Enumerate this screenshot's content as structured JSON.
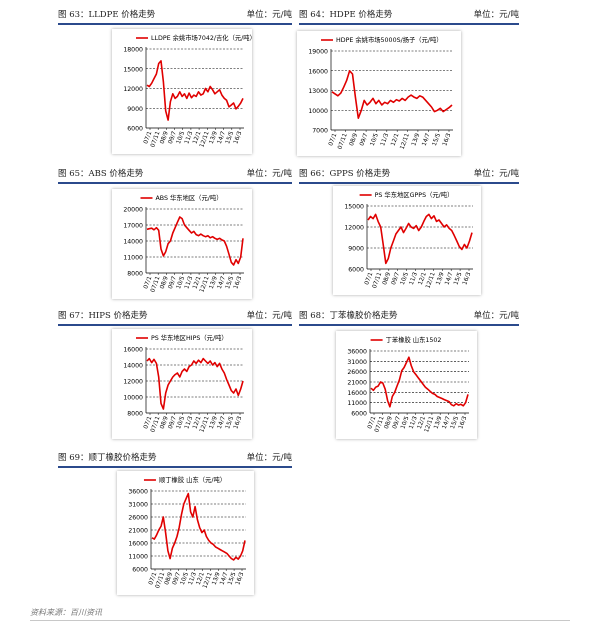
{
  "panels": [
    {
      "id": "p63",
      "title": "图 63：LLDPE 价格走势",
      "unit": "单位：元/吨",
      "chart_data": {
        "type": "line",
        "legend": "LLDPE 余姚市场7042/吉化（元/吨）",
        "ylim": [
          6000,
          18000
        ],
        "yticks": [
          6000,
          9000,
          12000,
          15000,
          18000
        ],
        "xticks": [
          "07/1",
          "07/11",
          "08/9",
          "09/7",
          "10/5",
          "11/3",
          "12/1",
          "12/11",
          "13/9",
          "14/7",
          "15/5",
          "16/3"
        ],
        "color": "#e00000",
        "series": [
          12500,
          12300,
          12800,
          13500,
          14200,
          15800,
          16200,
          13000,
          8600,
          7200,
          10000,
          11200,
          10500,
          10800,
          11500,
          10800,
          11200,
          10500,
          11300,
          10600,
          11000,
          10800,
          11500,
          11000,
          11200,
          12000,
          11500,
          12300,
          11800,
          11200,
          11500,
          11800,
          11000,
          10500,
          10200,
          9200,
          9500,
          9800,
          8900,
          9300,
          9800,
          10500
        ]
      }
    },
    {
      "id": "p64",
      "title": "图 64：HDPE 价格走势",
      "unit": "单位：元/吨",
      "chart_data": {
        "type": "line",
        "legend": "HDPE 余姚市场5000S/扬子（元/吨）",
        "ylim": [
          7000,
          19000
        ],
        "yticks": [
          7000,
          10000,
          13000,
          16000,
          19000
        ],
        "xticks": [
          "07/1",
          "07/11",
          "08/9",
          "09/7",
          "10/5",
          "11/3",
          "12/1",
          "12/11",
          "13/9",
          "14/7",
          "15/5",
          "16/3"
        ],
        "color": "#e00000",
        "series": [
          12800,
          12500,
          12200,
          12600,
          13500,
          14500,
          16000,
          15500,
          12000,
          8800,
          10000,
          11500,
          10800,
          11200,
          11800,
          11000,
          11500,
          10800,
          11200,
          11000,
          11500,
          11200,
          11600,
          11400,
          11800,
          11500,
          12000,
          12300,
          12000,
          11800,
          12200,
          12000,
          11500,
          11000,
          10500,
          9800,
          10000,
          10300,
          9800,
          10100,
          10400,
          10800
        ]
      }
    },
    {
      "id": "p65",
      "title": "图 65：ABS 价格走势",
      "unit": "单位：元/吨",
      "chart_data": {
        "type": "line",
        "legend": "ABS 华东地区（元/吨）",
        "ylim": [
          8000,
          20000
        ],
        "yticks": [
          8000,
          11000,
          14000,
          17000,
          20000
        ],
        "xticks": [
          "07/1",
          "07/11",
          "08/9",
          "09/7",
          "10/5",
          "11/3",
          "12/1",
          "12/11",
          "13/9",
          "14/7",
          "15/5",
          "16/3"
        ],
        "color": "#e00000",
        "series": [
          16200,
          16300,
          16400,
          16100,
          16500,
          16000,
          12500,
          11200,
          12000,
          13500,
          14000,
          15500,
          16500,
          17500,
          18500,
          18200,
          17000,
          16500,
          16000,
          15500,
          15800,
          15200,
          15000,
          15300,
          15000,
          14800,
          15000,
          14600,
          14800,
          14500,
          14300,
          14500,
          14200,
          14000,
          13000,
          11500,
          10000,
          9500,
          10500,
          9800,
          11000,
          14500
        ]
      }
    },
    {
      "id": "p66",
      "title": "图 66：GPPS 价格走势",
      "unit": "单位：元/吨",
      "chart_data": {
        "type": "line",
        "legend": "PS 华东地区GPPS（元/吨）",
        "ylim": [
          6000,
          15000
        ],
        "yticks": [
          6000,
          9000,
          12000,
          15000
        ],
        "xticks": [
          "07/1",
          "07/11",
          "08/9",
          "09/7",
          "10/5",
          "11/3",
          "12/1",
          "12/11",
          "13/9",
          "14/7",
          "15/5",
          "16/3"
        ],
        "color": "#e00000",
        "series": [
          13000,
          13500,
          13200,
          13800,
          12800,
          12000,
          9500,
          6800,
          7500,
          9000,
          10000,
          11000,
          11500,
          12000,
          11200,
          11800,
          12500,
          12000,
          11800,
          12200,
          11500,
          12000,
          12800,
          13500,
          13800,
          13200,
          13600,
          12800,
          13000,
          12500,
          12000,
          12300,
          11800,
          11500,
          10800,
          10000,
          9200,
          8800,
          9500,
          9000,
          10000,
          11200
        ]
      }
    },
    {
      "id": "p67",
      "title": "图 67：HIPS 价格走势",
      "unit": "单位：元/吨",
      "chart_data": {
        "type": "line",
        "legend": "PS 华东地区HIPS（元/吨）",
        "ylim": [
          8000,
          16000
        ],
        "yticks": [
          8000,
          10000,
          12000,
          14000,
          16000
        ],
        "xticks": [
          "07/1",
          "07/11",
          "08/9",
          "09/7",
          "10/5",
          "11/3",
          "12/1",
          "12/11",
          "13/9",
          "14/7",
          "15/5",
          "16/3"
        ],
        "color": "#e00000",
        "series": [
          14500,
          14800,
          14300,
          14700,
          14200,
          12500,
          9200,
          8500,
          10500,
          11500,
          12000,
          12500,
          12800,
          13000,
          12500,
          13200,
          13500,
          13200,
          13800,
          14000,
          14500,
          14200,
          14600,
          14300,
          14800,
          14500,
          14200,
          14500,
          14000,
          14300,
          13800,
          14200,
          13500,
          13000,
          12200,
          11500,
          10800,
          10500,
          11000,
          10200,
          11000,
          12000
        ]
      }
    },
    {
      "id": "p68",
      "title": "图 68：丁苯橡胶价格走势",
      "unit": "单位：元/吨",
      "chart_data": {
        "type": "line",
        "legend": "丁苯橡胶 山东1502",
        "ylim": [
          6000,
          36000
        ],
        "yticks": [
          6000,
          11000,
          16000,
          21000,
          26000,
          31000,
          36000
        ],
        "xticks": [
          "07/1",
          "07/11",
          "08/9",
          "09/7",
          "10/5",
          "11/3",
          "12/1",
          "12/11",
          "13/9",
          "14/7",
          "15/5",
          "16/3"
        ],
        "color": "#e00000",
        "series": [
          18000,
          17000,
          18500,
          19000,
          21000,
          20500,
          17500,
          12000,
          9000,
          14000,
          16000,
          19000,
          22000,
          26500,
          28000,
          30500,
          33000,
          29000,
          26000,
          24500,
          23000,
          21500,
          20000,
          18500,
          17500,
          16500,
          15500,
          15000,
          14000,
          13500,
          13000,
          12500,
          12000,
          11500,
          10000,
          9500,
          10500,
          9800,
          10200,
          9500,
          11000,
          15000
        ]
      }
    },
    {
      "id": "p69",
      "title": "图 69：顺丁橡胶价格走势",
      "unit": "单位：元/吨",
      "chart_data": {
        "type": "line",
        "legend": "顺丁橡胶 山东（元/吨）",
        "ylim": [
          6000,
          36000
        ],
        "yticks": [
          6000,
          11000,
          16000,
          21000,
          26000,
          31000,
          36000
        ],
        "xticks": [
          "07/1",
          "07/11",
          "08/9",
          "09/7",
          "10/5",
          "11/3",
          "12/1",
          "12/11",
          "13/9",
          "14/7",
          "15/5",
          "16/3"
        ],
        "color": "#e00000",
        "series": [
          18000,
          17500,
          19000,
          21000,
          22500,
          26000,
          20000,
          13000,
          10000,
          14000,
          16000,
          18500,
          22000,
          27000,
          31000,
          33000,
          35000,
          28000,
          26000,
          30000,
          25000,
          22000,
          20000,
          21000,
          18500,
          17000,
          16000,
          15500,
          14500,
          14000,
          13500,
          13000,
          12500,
          12000,
          11000,
          10000,
          9500,
          10500,
          9800,
          11000,
          13000,
          17000
        ]
      }
    }
  ],
  "source": "资料来源：百川资讯"
}
